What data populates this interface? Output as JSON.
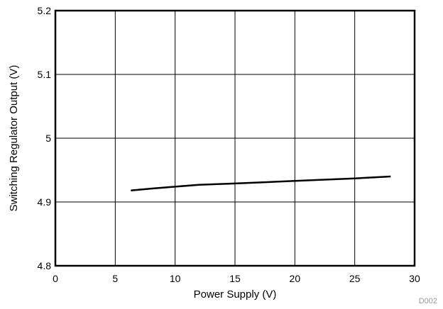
{
  "chart_data": {
    "type": "line",
    "xlabel": "Power Supply (V)",
    "ylabel": "Switching Regulator Output (V)",
    "xlim": [
      0,
      30
    ],
    "ylim": [
      4.8,
      5.2
    ],
    "x_ticks": [
      0,
      5,
      10,
      15,
      20,
      25,
      30
    ],
    "x_tick_labels": [
      "0",
      "5",
      "10",
      "15",
      "20",
      "25",
      "30"
    ],
    "y_ticks": [
      4.8,
      4.9,
      5.0,
      5.1,
      5.2
    ],
    "y_tick_labels": [
      "4.8",
      "4.9",
      "5",
      "5.1",
      "5.2"
    ],
    "grid": true,
    "legend": "none",
    "figure_id": "D002",
    "series": [
      {
        "color": "#000000",
        "x": [
          6.3,
          8,
          10,
          12,
          15,
          20,
          25,
          28
        ],
        "y": [
          4.918,
          4.921,
          4.924,
          4.927,
          4.929,
          4.933,
          4.937,
          4.94
        ]
      }
    ]
  }
}
